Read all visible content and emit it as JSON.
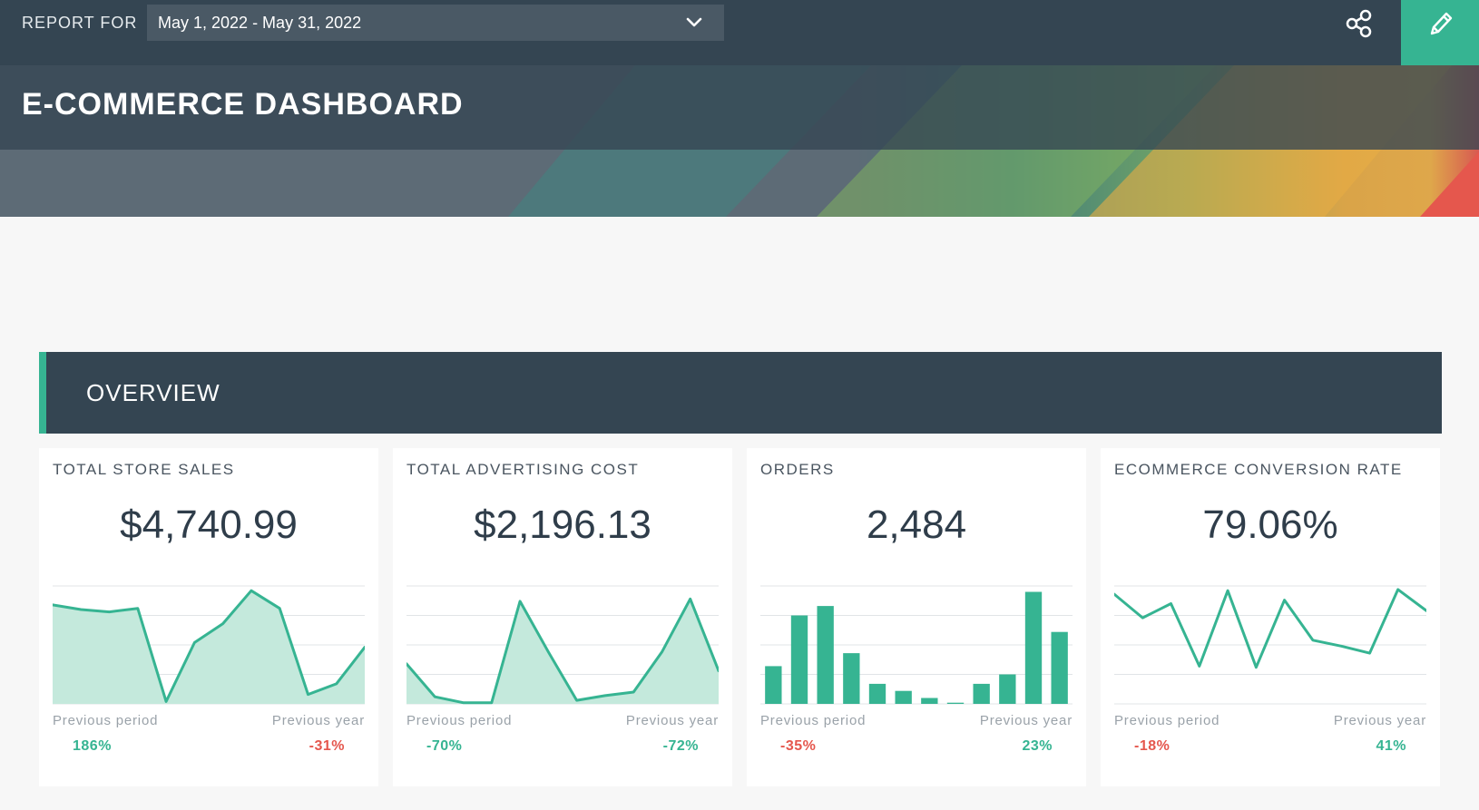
{
  "header": {
    "report_for_label": "REPORT FOR",
    "date_range": "May 1, 2022 - May 31, 2022",
    "title": "E-COMMERCE DASHBOARD",
    "icons": [
      "chevron-down-icon",
      "share-icon",
      "pencil-icon"
    ]
  },
  "colors": {
    "header_bg": "#344552",
    "accent": "#36b492",
    "negative": "#e5574d",
    "chart_fill": "#c4e9dc"
  },
  "overview": {
    "title": "OVERVIEW"
  },
  "cards": [
    {
      "title": "TOTAL STORE SALES",
      "value": "$4,740.99",
      "prev_label": "Previous period",
      "prev_pct": "186%",
      "prev_trend": "positive",
      "year_label": "Previous year",
      "year_pct": "-31%",
      "year_trend": "negative"
    },
    {
      "title": "TOTAL ADVERTISING COST",
      "value": "$2,196.13",
      "prev_label": "Previous period",
      "prev_pct": "-70%",
      "prev_trend": "positive",
      "year_label": "Previous year",
      "year_pct": "-72%",
      "year_trend": "positive"
    },
    {
      "title": "ORDERS",
      "value": "2,484",
      "prev_label": "Previous period",
      "prev_pct": "-35%",
      "prev_trend": "negative",
      "year_label": "Previous year",
      "year_pct": "23%",
      "year_trend": "positive"
    },
    {
      "title": "ECOMMERCE CONVERSION RATE",
      "value": "79.06%",
      "prev_label": "Previous period",
      "prev_pct": "-18%",
      "prev_trend": "negative",
      "year_label": "Previous year",
      "year_pct": "41%",
      "year_trend": "positive"
    }
  ],
  "chart_data": [
    {
      "type": "area",
      "values": [
        84,
        80,
        78,
        81,
        2,
        52,
        68,
        96,
        81,
        8,
        17,
        48
      ],
      "ylim": [
        0,
        100
      ]
    },
    {
      "type": "area",
      "values": [
        34,
        6,
        1,
        1,
        87,
        44,
        3,
        7,
        10,
        44,
        89,
        28
      ],
      "ylim": [
        0,
        100
      ]
    },
    {
      "type": "bar",
      "values": [
        32,
        75,
        83,
        43,
        17,
        11,
        5,
        1,
        17,
        25,
        95,
        61
      ],
      "ylim": [
        0,
        100
      ]
    },
    {
      "type": "line",
      "values": [
        93,
        73,
        85,
        32,
        96,
        31,
        88,
        54,
        49,
        43,
        97,
        79
      ],
      "ylim": [
        0,
        100
      ]
    }
  ]
}
